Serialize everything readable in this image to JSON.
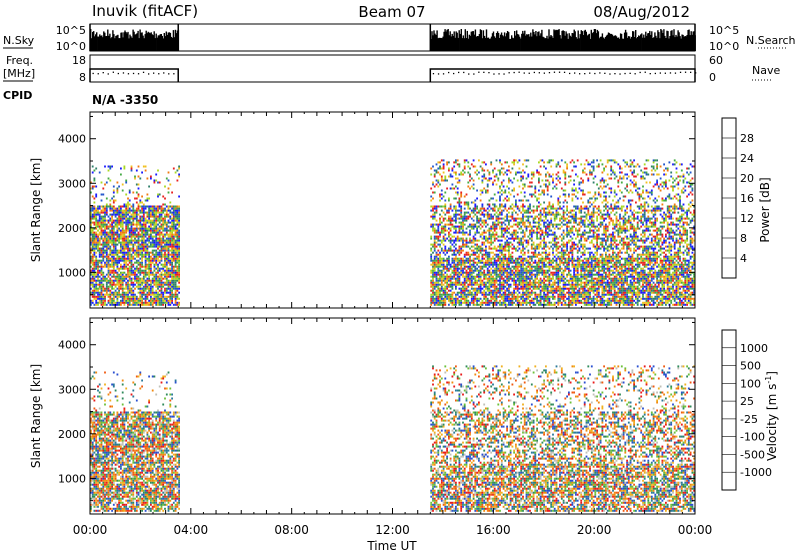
{
  "header": {
    "station": "Inuvik (fitACF)",
    "beam": "Beam 07",
    "date": "08/Aug/2012"
  },
  "panels": {
    "nsky": {
      "left_label": "N.Sky",
      "right_label": "N.Search",
      "left_ticks": [
        "10^5",
        "10^0"
      ],
      "right_ticks": [
        "10^5",
        "10^0"
      ]
    },
    "freq": {
      "left_label_1": "Freq.",
      "left_label_2": "[MHz]",
      "right_label": "Nave",
      "left_ticks": [
        "18",
        "8"
      ],
      "right_ticks": [
        "60",
        "0"
      ]
    },
    "cpid": {
      "label": "CPID",
      "value": "N/A -3350"
    }
  },
  "chart_data": [
    {
      "type": "heatmap",
      "name": "power",
      "ylabel": "Slant Range [km]",
      "ylim": [
        200,
        4600
      ],
      "yticks": [
        "1000",
        "2000",
        "3000",
        "4000"
      ],
      "colorbar_label": "Power [dB]",
      "colorbar_ticks": [
        "4",
        "8",
        "12",
        "16",
        "20",
        "24",
        "28"
      ],
      "colors": [
        "#1a1aff",
        "#2255cc",
        "#2f7f6a",
        "#44aa44",
        "#a8d820",
        "#f0c020",
        "#f07a10",
        "#e82020"
      ],
      "data_windows_hours": [
        [
          0,
          3.5
        ],
        [
          13.5,
          24
        ]
      ]
    },
    {
      "type": "heatmap",
      "name": "velocity",
      "ylabel": "Slant Range [km]",
      "ylim": [
        200,
        4600
      ],
      "yticks": [
        "1000",
        "2000",
        "3000",
        "4000"
      ],
      "colorbar_label": "Velocity [m s^-1]",
      "colorbar_ticks": [
        "1000",
        "500",
        "100",
        "25",
        "-25",
        "-100",
        "-500",
        "-1000"
      ],
      "colors": [
        "#2a4fd0",
        "#2a7a9a",
        "#2f8a5a",
        "#6cc03a",
        "#c0c0b8",
        "#f0b020",
        "#f08a10",
        "#f05a10",
        "#e81a1a"
      ],
      "data_windows_hours": [
        [
          0,
          3.5
        ],
        [
          13.5,
          24
        ]
      ]
    }
  ],
  "xaxis": {
    "label": "Time UT",
    "ticks": [
      "00:00",
      "04:00",
      "08:00",
      "12:00",
      "16:00",
      "20:00",
      "00:00"
    ]
  }
}
